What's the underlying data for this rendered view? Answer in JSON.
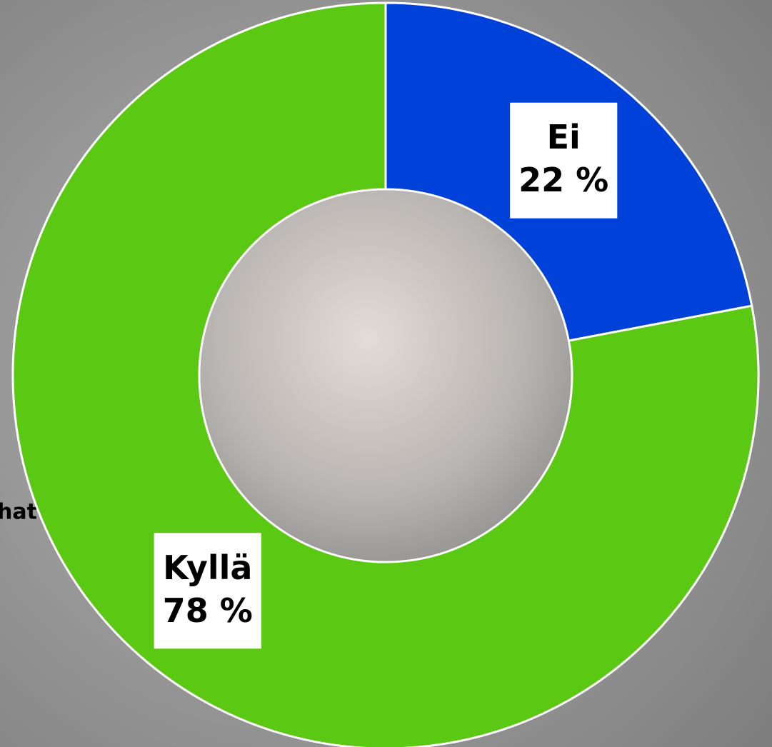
{
  "chart_data": {
    "type": "donut",
    "categories": [
      "Ei",
      "Kyllä"
    ],
    "values": [
      22,
      78
    ],
    "value_labels": [
      "22 %",
      "78 %"
    ],
    "colors": [
      "#0041d9",
      "#5bc914"
    ],
    "annotation": "hat"
  }
}
